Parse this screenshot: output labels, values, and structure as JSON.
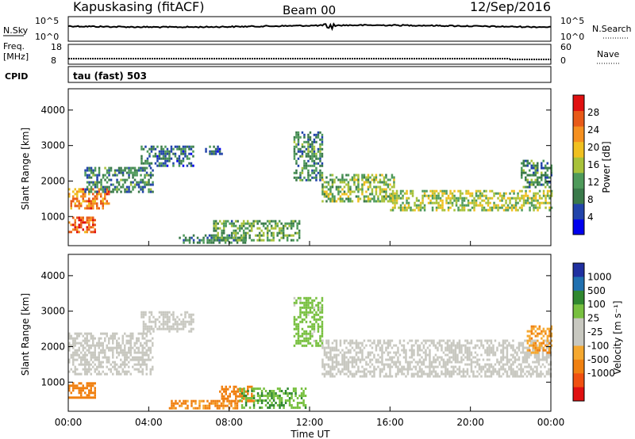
{
  "header": {
    "station": "Kapuskasing (fitACF)",
    "beam": "Beam 00",
    "date": "12/Sep/2016"
  },
  "strip_labels": {
    "nsky": "N.Sky",
    "nsky_ticks": [
      "10^5",
      "10^0"
    ],
    "nsearch": "N.Search",
    "nsearch_ticks": [
      "10^5",
      "10^0"
    ],
    "freq": "Freq.",
    "freq_unit": "[MHz]",
    "freq_ticks": [
      "18",
      "8"
    ],
    "nave": "Nave",
    "nave_ticks": [
      "60",
      "0"
    ],
    "cpid": "CPID",
    "tau": "tau (fast) 503"
  },
  "colors": {
    "power_scale": [
      "#0000ee",
      "#2244aa",
      "#3a7a4a",
      "#4e9a5a",
      "#a8c23a",
      "#f0c020",
      "#f59020",
      "#e85a18",
      "#e01010"
    ],
    "velocity_scale": [
      "#e01010",
      "#f05010",
      "#f08010",
      "#f5a830",
      "#c8c8c0",
      "#c8c8c0",
      "#78c040",
      "#308830",
      "#2070b0",
      "#2030a0"
    ]
  },
  "chart_data": [
    {
      "type": "heatmap",
      "title": "",
      "quantity": "Power",
      "ylabel": "Slant Range [km]",
      "xlabel": "",
      "x_ticks": [
        "00:00",
        "04:00",
        "08:00",
        "12:00",
        "16:00",
        "20:00",
        "00:00"
      ],
      "xlim_hours": [
        0,
        24
      ],
      "y_ticks": [
        1000,
        2000,
        3000,
        4000
      ],
      "ylim_km": [
        180,
        4600
      ],
      "colorbar": {
        "label": "Power [dB]",
        "ticks": [
          4,
          8,
          12,
          16,
          20,
          24,
          28
        ],
        "range": [
          0,
          32
        ]
      },
      "echo_bands": [
        {
          "t0": 0.0,
          "t1": 2.0,
          "r0": 1200,
          "r1": 1800,
          "value": 24
        },
        {
          "t0": 0.0,
          "t1": 1.3,
          "r0": 550,
          "r1": 1000,
          "value": 26
        },
        {
          "t0": 0.8,
          "t1": 4.2,
          "r0": 1700,
          "r1": 2400,
          "value": 10
        },
        {
          "t0": 3.6,
          "t1": 6.2,
          "r0": 2400,
          "r1": 3000,
          "value": 8
        },
        {
          "t0": 6.8,
          "t1": 7.6,
          "r0": 2750,
          "r1": 3000,
          "value": 8
        },
        {
          "t0": 5.5,
          "t1": 8.8,
          "r0": 250,
          "r1": 500,
          "value": 9
        },
        {
          "t0": 7.2,
          "t1": 11.5,
          "r0": 350,
          "r1": 900,
          "value": 12
        },
        {
          "t0": 11.2,
          "t1": 12.6,
          "r0": 2000,
          "r1": 3400,
          "value": 10
        },
        {
          "t0": 12.6,
          "t1": 16.2,
          "r0": 1400,
          "r1": 2200,
          "value": 14
        },
        {
          "t0": 16.0,
          "t1": 24.0,
          "r0": 1150,
          "r1": 1750,
          "value": 16
        },
        {
          "t0": 22.5,
          "t1": 24.0,
          "r0": 1800,
          "r1": 2600,
          "value": 10
        }
      ]
    },
    {
      "type": "heatmap",
      "title": "",
      "quantity": "Velocity",
      "ylabel": "Slant Range [km]",
      "xlabel": "Time UT",
      "x_ticks": [
        "00:00",
        "04:00",
        "08:00",
        "12:00",
        "16:00",
        "20:00",
        "00:00"
      ],
      "xlim_hours": [
        0,
        24
      ],
      "y_ticks": [
        1000,
        2000,
        3000,
        4000
      ],
      "ylim_km": [
        180,
        4600
      ],
      "colorbar": {
        "label": "Velocity [m s⁻¹]",
        "ticks": [
          1000,
          500,
          100,
          25,
          -25,
          -100,
          -500,
          -1000
        ]
      },
      "echo_bands": [
        {
          "t0": 0.0,
          "t1": 4.2,
          "r0": 1200,
          "r1": 2400,
          "value": 0
        },
        {
          "t0": 0.0,
          "t1": 1.3,
          "r0": 550,
          "r1": 1000,
          "value": -300
        },
        {
          "t0": 3.6,
          "t1": 6.2,
          "r0": 2400,
          "r1": 3000,
          "value": 0
        },
        {
          "t0": 5.0,
          "t1": 8.5,
          "r0": 250,
          "r1": 500,
          "value": -120
        },
        {
          "t0": 7.5,
          "t1": 9.2,
          "r0": 450,
          "r1": 900,
          "value": -200
        },
        {
          "t0": 8.5,
          "t1": 11.8,
          "r0": 250,
          "r1": 850,
          "value": 80
        },
        {
          "t0": 11.2,
          "t1": 12.6,
          "r0": 2000,
          "r1": 3400,
          "value": 60
        },
        {
          "t0": 12.6,
          "t1": 24.0,
          "r0": 1150,
          "r1": 2200,
          "value": 0
        },
        {
          "t0": 22.8,
          "t1": 24.0,
          "r0": 1800,
          "r1": 2600,
          "value": -80
        }
      ]
    }
  ]
}
